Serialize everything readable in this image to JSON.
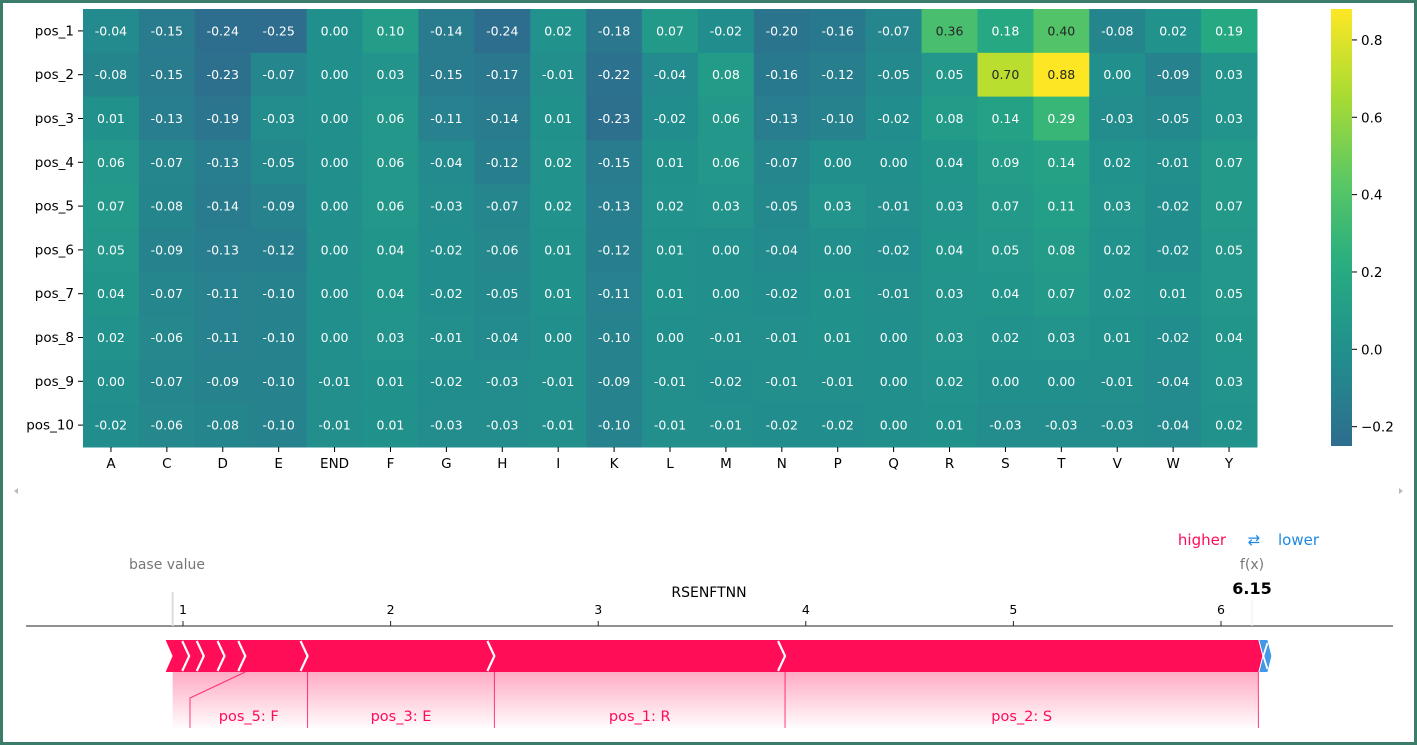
{
  "chart_data": [
    {
      "type": "heatmap",
      "rows": [
        "pos_1",
        "pos_2",
        "pos_3",
        "pos_4",
        "pos_5",
        "pos_6",
        "pos_7",
        "pos_8",
        "pos_9",
        "pos_10"
      ],
      "columns": [
        "A",
        "C",
        "D",
        "E",
        "END",
        "F",
        "G",
        "H",
        "I",
        "K",
        "L",
        "M",
        "N",
        "P",
        "Q",
        "R",
        "S",
        "T",
        "V",
        "W",
        "Y"
      ],
      "values": [
        [
          -0.04,
          -0.15,
          -0.24,
          -0.25,
          0.0,
          0.1,
          -0.14,
          -0.24,
          0.02,
          -0.18,
          0.07,
          -0.02,
          -0.2,
          -0.16,
          -0.07,
          0.36,
          0.18,
          0.4,
          -0.08,
          0.02,
          0.19
        ],
        [
          -0.08,
          -0.15,
          -0.23,
          -0.07,
          0.0,
          0.03,
          -0.15,
          -0.17,
          -0.01,
          -0.22,
          -0.04,
          0.08,
          -0.16,
          -0.12,
          -0.05,
          0.05,
          0.7,
          0.88,
          0.0,
          -0.09,
          0.03
        ],
        [
          0.01,
          -0.13,
          -0.19,
          -0.03,
          0.0,
          0.06,
          -0.11,
          -0.14,
          0.01,
          -0.23,
          -0.02,
          0.06,
          -0.13,
          -0.1,
          -0.02,
          0.08,
          0.14,
          0.29,
          -0.03,
          -0.05,
          0.03
        ],
        [
          0.06,
          -0.07,
          -0.13,
          -0.05,
          0.0,
          0.06,
          -0.04,
          -0.12,
          0.02,
          -0.15,
          0.01,
          0.06,
          -0.07,
          0.0,
          -0.0,
          0.04,
          0.09,
          0.14,
          0.02,
          -0.01,
          0.07
        ],
        [
          0.07,
          -0.08,
          -0.14,
          -0.09,
          0.0,
          0.06,
          -0.03,
          -0.07,
          0.02,
          -0.13,
          0.02,
          0.03,
          -0.05,
          0.03,
          -0.01,
          0.03,
          0.07,
          0.11,
          0.03,
          -0.02,
          0.07
        ],
        [
          0.05,
          -0.09,
          -0.13,
          -0.12,
          0.0,
          0.04,
          -0.02,
          -0.06,
          0.01,
          -0.12,
          0.01,
          0.0,
          -0.04,
          -0.0,
          -0.02,
          0.04,
          0.05,
          0.08,
          0.02,
          -0.02,
          0.05
        ],
        [
          0.04,
          -0.07,
          -0.11,
          -0.1,
          0.0,
          0.04,
          -0.02,
          -0.05,
          0.01,
          -0.11,
          0.01,
          -0.0,
          -0.02,
          0.01,
          -0.01,
          0.03,
          0.04,
          0.07,
          0.02,
          0.01,
          0.05
        ],
        [
          0.02,
          -0.06,
          -0.11,
          -0.1,
          0.0,
          0.03,
          -0.01,
          -0.04,
          0.0,
          -0.1,
          0.0,
          -0.01,
          -0.01,
          0.01,
          -0.0,
          0.03,
          0.02,
          0.03,
          0.01,
          -0.02,
          0.04
        ],
        [
          0.0,
          -0.07,
          -0.09,
          -0.1,
          -0.01,
          0.01,
          -0.02,
          -0.03,
          -0.01,
          -0.09,
          -0.01,
          -0.02,
          -0.01,
          -0.01,
          -0.0,
          0.02,
          -0.0,
          -0.0,
          -0.01,
          -0.04,
          0.03
        ],
        [
          -0.02,
          -0.06,
          -0.08,
          -0.1,
          -0.01,
          0.01,
          -0.03,
          -0.03,
          -0.01,
          -0.1,
          -0.01,
          -0.01,
          -0.02,
          -0.02,
          -0.0,
          0.01,
          -0.03,
          -0.03,
          -0.03,
          -0.04,
          0.02
        ]
      ],
      "value_format": "2 decimals",
      "colormap": "viridis",
      "vmin": -0.25,
      "vmax": 0.88,
      "colorbar_ticks": [
        -0.2,
        0.0,
        0.2,
        0.4,
        0.6,
        0.8
      ],
      "colorbar_tick_labels": [
        "−0.2",
        "0.0",
        "0.2",
        "0.4",
        "0.6",
        "0.8"
      ]
    },
    {
      "type": "force_plot",
      "title": "RSENFTNN",
      "base_value_label": "base value",
      "base_value": 0.95,
      "output_label": "f(x)",
      "output_value": 6.15,
      "output_value_text": "6.15",
      "legend": {
        "higher": "higher",
        "arrow": "⇄",
        "lower": "lower"
      },
      "x_ticks": [
        1,
        2,
        3,
        4,
        5,
        6
      ],
      "xlim": [
        0.3,
        7.0
      ],
      "positive_segments": [
        {
          "label": "",
          "start": 0.95,
          "end": 1.03
        },
        {
          "label": "",
          "start": 1.03,
          "end": 1.1
        },
        {
          "label": "",
          "start": 1.1,
          "end": 1.2
        },
        {
          "label": "",
          "start": 1.2,
          "end": 1.3
        },
        {
          "label": "pos_5: F",
          "start": 1.3,
          "end": 1.6
        },
        {
          "label": "pos_3: E",
          "start": 1.6,
          "end": 2.5
        },
        {
          "label": "pos_1: R",
          "start": 2.5,
          "end": 3.9
        },
        {
          "label": "pos_2: S",
          "start": 3.9,
          "end": 6.18
        }
      ],
      "negative_segments": [
        {
          "label": "",
          "start": 6.18,
          "end": 6.15
        }
      ],
      "colors": {
        "positive": "#ff0d57",
        "negative": "#1e88e5",
        "legend_higher": "#ff0d57",
        "legend_lower": "#1e88e5",
        "axis_text": "#000000",
        "base_value_text": "#777777"
      }
    }
  ]
}
